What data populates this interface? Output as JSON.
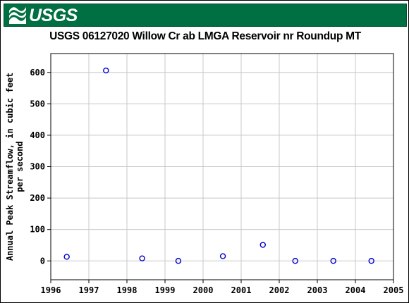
{
  "header": {
    "logo_text": "USGS",
    "brand_color": "#006f41",
    "logo_icon": "usgs-wave-logo-icon"
  },
  "chart_data": {
    "type": "scatter",
    "title": "USGS 06127020 Willow Cr ab LMGA Reservoir nr Roundup MT",
    "ylabel_lines": [
      "Annual Peak Streamflow, in cubic feet",
      "per second"
    ],
    "xlabel": "",
    "xlim": [
      1996,
      2005
    ],
    "ylim": [
      -60,
      660
    ],
    "x_ticks": [
      1996,
      1997,
      1998,
      1999,
      2000,
      2001,
      2002,
      2003,
      2004,
      2005
    ],
    "y_ticks": [
      0,
      100,
      200,
      300,
      400,
      500,
      600
    ],
    "grid": true,
    "marker": "open-circle",
    "marker_color": "#0000cc",
    "points": [
      {
        "x": 1996.42,
        "y": 13
      },
      {
        "x": 1997.45,
        "y": 606
      },
      {
        "x": 1998.4,
        "y": 8
      },
      {
        "x": 1999.35,
        "y": 0
      },
      {
        "x": 2000.52,
        "y": 15
      },
      {
        "x": 2001.57,
        "y": 51
      },
      {
        "x": 2002.42,
        "y": 0
      },
      {
        "x": 2003.42,
        "y": 0
      },
      {
        "x": 2004.42,
        "y": 0
      }
    ]
  }
}
